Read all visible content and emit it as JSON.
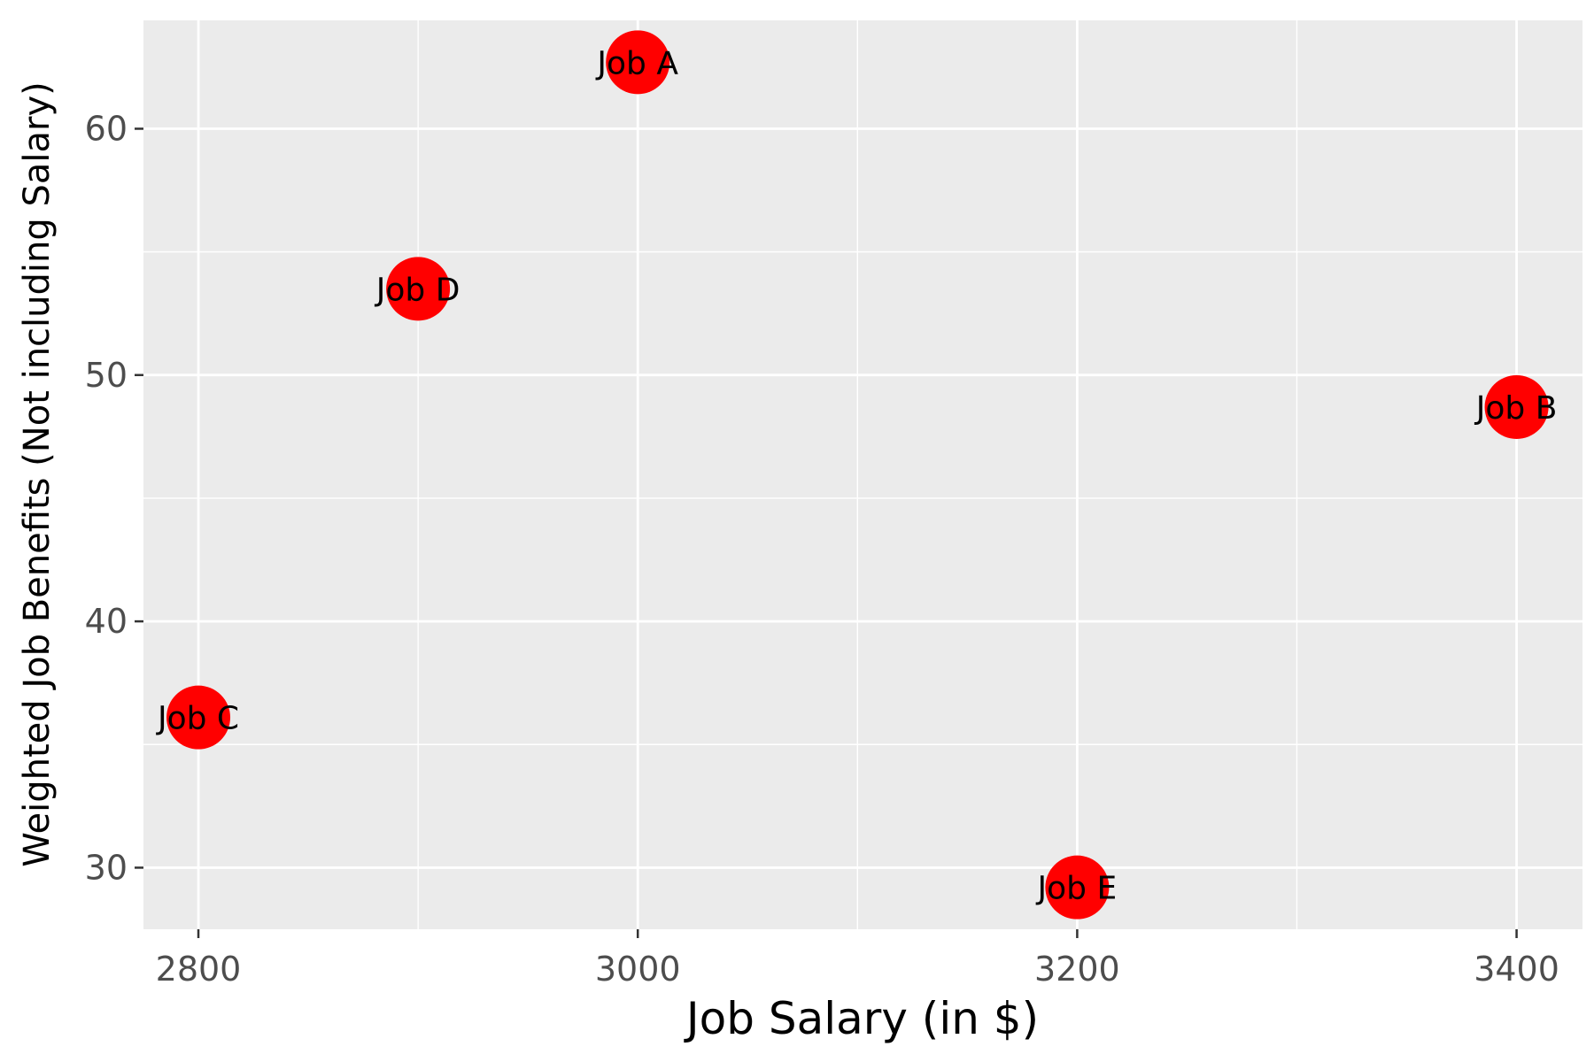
{
  "chart_data": {
    "type": "scatter",
    "title": "",
    "xlabel": "Job Salary (in $)",
    "ylabel": "Weighted Job Benefits (Not including Salary)",
    "xlim": [
      2775,
      3430
    ],
    "ylim": [
      27.5,
      64.4
    ],
    "x_ticks": [
      2800,
      3000,
      3200,
      3400
    ],
    "y_ticks": [
      30,
      40,
      50,
      60
    ],
    "x_tick_labels": [
      "2800",
      "3000",
      "3200",
      "3400"
    ],
    "y_tick_labels": [
      "30",
      "40",
      "50",
      "60"
    ],
    "grid": true,
    "legend": "none",
    "colors": {
      "panel": "#ebebeb",
      "gridline": "#ffffff",
      "point": "#ff0000",
      "tick_label": "#4d4d4d",
      "axis_title": "#000000"
    },
    "points": [
      {
        "label": "Job A",
        "x": 3000,
        "y": 62.7
      },
      {
        "label": "Job B",
        "x": 3400,
        "y": 48.7
      },
      {
        "label": "Job C",
        "x": 2800,
        "y": 36.1
      },
      {
        "label": "Job D",
        "x": 2900,
        "y": 53.5
      },
      {
        "label": "Job E",
        "x": 3200,
        "y": 29.2
      }
    ]
  }
}
